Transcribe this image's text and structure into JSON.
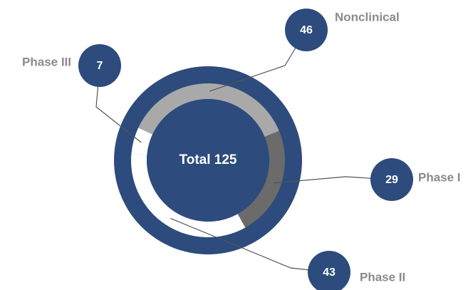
{
  "chart_data": {
    "type": "donut",
    "center_label": "Total 125",
    "categories": [
      "Nonclinical",
      "Phase I",
      "Phase II",
      "Phase III"
    ],
    "values": [
      46,
      29,
      43,
      7
    ],
    "colors": [
      "#a9a9a9",
      "#6b6b6b",
      "#ffffff",
      "#ffffff"
    ]
  }
}
